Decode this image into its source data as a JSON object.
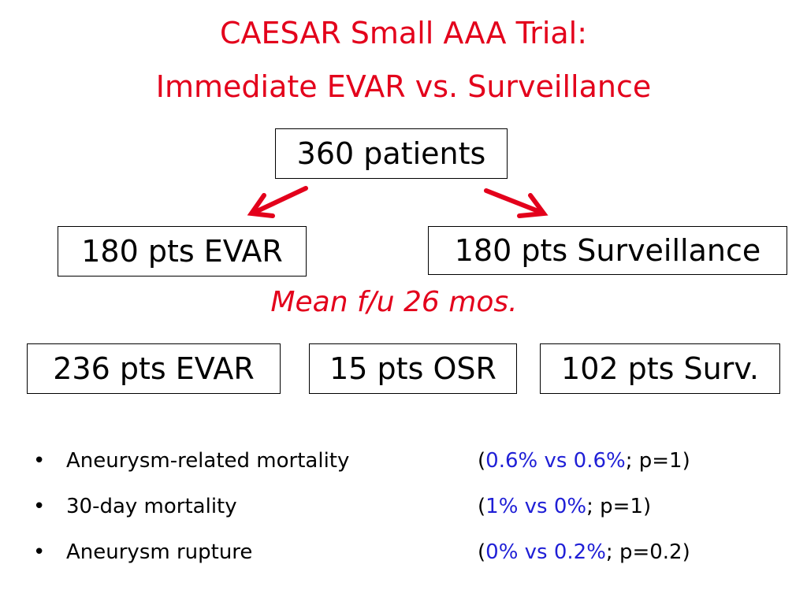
{
  "title": {
    "line1": "CAESAR Small AAA Trial:",
    "line2": "Immediate EVAR vs. Surveillance"
  },
  "flow": {
    "total": "360 patients",
    "arm_evar": "180 pts EVAR",
    "arm_surveillance": "180 pts Surveillance",
    "followup": "Mean f/u 26 mos.",
    "outcome_evar": "236 pts EVAR",
    "outcome_osr": "15 pts OSR",
    "outcome_surv": "102 pts Surv."
  },
  "bullets": [
    {
      "marker": "•",
      "label": "Aneurysm-related mortality",
      "open": "(",
      "values": "0.6% vs 0.6%",
      "rest": ";  p=1)"
    },
    {
      "marker": "•",
      "label": "30-day mortality",
      "open": "(",
      "values": "1% vs 0%",
      "rest": ";  p=1)"
    },
    {
      "marker": "•",
      "label": "Aneurysm rupture",
      "open": "(",
      "values": "0% vs 0.2%",
      "rest": "; p=0.2)"
    }
  ],
  "colors": {
    "title": "#e3001b",
    "arrow": "#e3001b",
    "stat_values": "#1f1fd6",
    "box_border": "#000000"
  }
}
